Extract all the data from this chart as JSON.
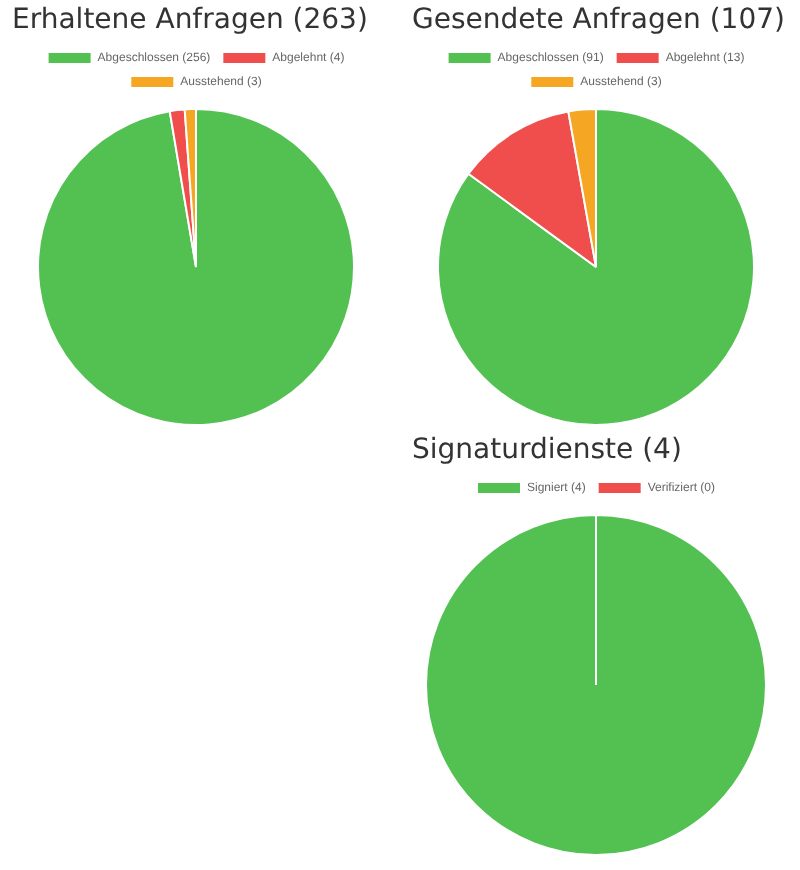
{
  "chart_data": [
    {
      "type": "pie",
      "title": "Erhaltene Anfragen (263)",
      "categories": [
        "Abgeschlossen (256)",
        "Abgelehnt (4)",
        "Ausstehend (3)"
      ],
      "values": [
        256,
        4,
        3
      ],
      "colors": [
        "#52c152",
        "#f04d4d",
        "#f5a623"
      ],
      "legend": "top"
    },
    {
      "type": "pie",
      "title": "Gesendete Anfragen (107)",
      "categories": [
        "Abgeschlossen (91)",
        "Abgelehnt (13)",
        "Ausstehend (3)"
      ],
      "values": [
        91,
        13,
        3
      ],
      "colors": [
        "#52c152",
        "#f04d4d",
        "#f5a623"
      ],
      "legend": "top"
    },
    {
      "type": "pie",
      "title": "Signaturdienste (4)",
      "categories": [
        "Signiert (4)",
        "Verifiziert (0)"
      ],
      "values": [
        4,
        0
      ],
      "colors": [
        "#52c152",
        "#f04d4d"
      ],
      "legend": "top"
    }
  ]
}
